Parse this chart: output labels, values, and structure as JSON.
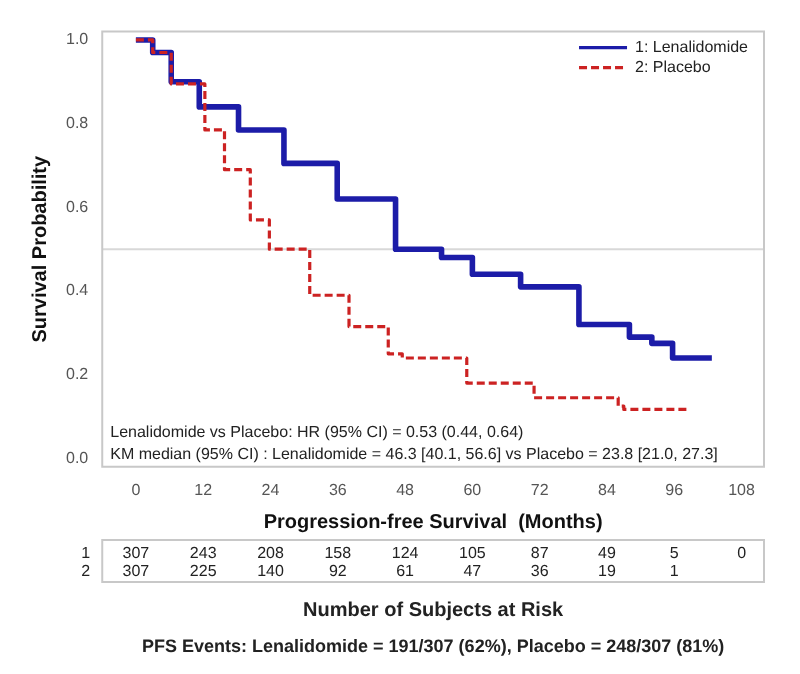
{
  "chart_data": {
    "type": "step",
    "xlabel": "Progression-free Survival  (Months)",
    "ylabel": "Survival Probability",
    "series": [
      {
        "name": "1: Lenalidomide",
        "color": "#1c1ca8",
        "line_style": "solid",
        "x": [
          0,
          3,
          6.3,
          11.3,
          18.3,
          26.4,
          35.9,
          46.3,
          54.5,
          60,
          68.6,
          79,
          88,
          92,
          95.7,
          102.7
        ],
        "values": [
          1,
          0.97,
          0.9,
          0.84,
          0.785,
          0.705,
          0.62,
          0.5,
          0.48,
          0.44,
          0.41,
          0.32,
          0.29,
          0.275,
          0.24,
          0.24
        ]
      },
      {
        "name": "2: Placebo",
        "color": "#cc2222",
        "line_style": "dashed",
        "x": [
          0,
          3,
          6.3,
          12.3,
          15.8,
          20.4,
          23.8,
          31,
          38,
          45,
          47.5,
          59,
          71,
          86,
          87,
          98.5
        ],
        "values": [
          1,
          0.97,
          0.895,
          0.785,
          0.69,
          0.57,
          0.5,
          0.39,
          0.315,
          0.25,
          0.24,
          0.18,
          0.145,
          0.125,
          0.117,
          0.117
        ]
      }
    ],
    "xlim": [
      -6,
      112
    ],
    "xticks": [
      0,
      12,
      24,
      36,
      48,
      60,
      72,
      84,
      96,
      108
    ],
    "ylim": [
      -0.02,
      1.02
    ],
    "yticks": [
      {
        "value": 0,
        "label": "0.0"
      },
      {
        "value": 0.2,
        "label": "0.2"
      },
      {
        "value": 0.4,
        "label": "0.4"
      },
      {
        "value": 0.6,
        "label": "0.6"
      },
      {
        "value": 0.8,
        "label": "0.8"
      },
      {
        "value": 1,
        "label": "1.0"
      }
    ],
    "grid": false,
    "legend": "top right",
    "ref_lines": [
      {
        "axis": "y",
        "value": 0.5,
        "color": "#d8d8d8"
      }
    ],
    "annotations": [
      "Lenalidomide vs Placebo: HR (95% CI) = 0.53 (0.44, 0.64)",
      "KM median (95% CI) : Lenalidomide = 46.3 [40.1, 56.6] vs Placebo = 23.8 [21.0, 27.3]",
      "1",
      "307 243 208 158 124 105 87 49 5 0",
      "2",
      "307 225 140 92 61 47 36 19 1",
      "Number of Subjects at Risk",
      "PFS Events: Lenalidomide = 191/307 (62%), Placebo = 248/307 (81%)"
    ]
  }
}
